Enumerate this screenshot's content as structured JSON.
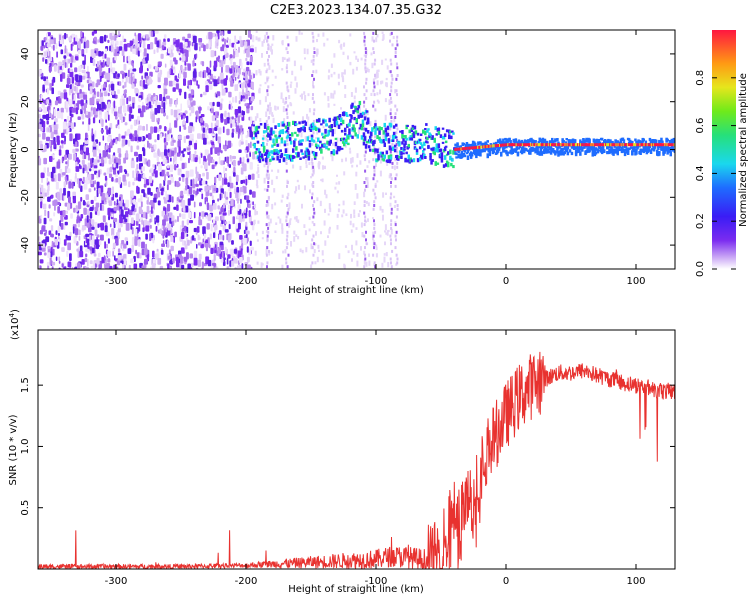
{
  "title": "C2E3.2023.134.07.35.G32",
  "colors": {
    "signal": "#e8322f",
    "axis": "#000000",
    "speckle": "#7b2cf0"
  },
  "chart_data": [
    {
      "type": "heatmap",
      "name": "spectrogram",
      "xlabel": "Height of straight line (km)",
      "ylabel": "Frequency (Hz)",
      "xlim": [
        -360,
        130
      ],
      "ylim": [
        -50,
        50
      ],
      "xticks": [
        -300,
        -200,
        -100,
        0,
        100
      ],
      "yticks": [
        -40,
        -20,
        0,
        20,
        40
      ],
      "colorbar": {
        "label": "Normalized spectral amplitude",
        "range": [
          0.0,
          1.0
        ],
        "ticks": [
          0.0,
          0.2,
          0.4,
          0.6,
          0.8
        ],
        "tick_labels": [
          "0.0",
          "0.2",
          "0.4",
          "0.6",
          "0.8"
        ],
        "colormap": "rainbow (white → purple → blue → cyan → green → yellow → red)"
      },
      "features": {
        "noise_region_x": [
          -360,
          -195
        ],
        "signal_band_center_hz": [
          [
            -195,
            3
          ],
          [
            -170,
            4
          ],
          [
            -150,
            5
          ],
          [
            -130,
            7
          ],
          [
            -115,
            14
          ],
          [
            -100,
            3
          ],
          [
            -80,
            4
          ],
          [
            -60,
            3
          ],
          [
            -40,
            0
          ],
          [
            -20,
            1
          ],
          [
            0,
            2
          ],
          [
            50,
            2
          ],
          [
            130,
            2
          ]
        ]
      }
    },
    {
      "type": "line",
      "name": "snr",
      "xlabel": "Height of straight line (km)",
      "ylabel": "SNR (10 * v/v)",
      "scale_label_base": "(x10",
      "scale_label_exp": "4",
      "scale_label_end": ")",
      "xlim": [
        -360,
        130
      ],
      "ylim": [
        0,
        1.95
      ],
      "xticks": [
        -300,
        -200,
        -100,
        0,
        100
      ],
      "yticks": [
        0.5,
        1.0,
        1.5
      ],
      "ytick_labels": [
        "0.5",
        "1.0",
        "1.5"
      ],
      "series": [
        {
          "x": [
            -360,
            -300,
            -250,
            -200,
            -180,
            -160,
            -140,
            -120,
            -100,
            -90,
            -80,
            -70,
            -60,
            -50,
            -45,
            -40,
            -35,
            -30,
            -25,
            -20,
            -15,
            -10,
            -5,
            0,
            10,
            20,
            30,
            40,
            50,
            60,
            70,
            80,
            90,
            100,
            110,
            115,
            120,
            130
          ],
          "y": [
            0.02,
            0.02,
            0.02,
            0.03,
            0.04,
            0.05,
            0.06,
            0.07,
            0.08,
            0.1,
            0.1,
            0.08,
            0.06,
            0.15,
            0.3,
            0.5,
            0.4,
            0.65,
            0.55,
            0.8,
            0.95,
            1.05,
            1.15,
            1.25,
            1.4,
            1.5,
            1.55,
            1.6,
            1.6,
            1.62,
            1.58,
            1.55,
            1.52,
            1.5,
            1.48,
            1.46,
            1.45,
            1.45
          ]
        }
      ]
    }
  ]
}
